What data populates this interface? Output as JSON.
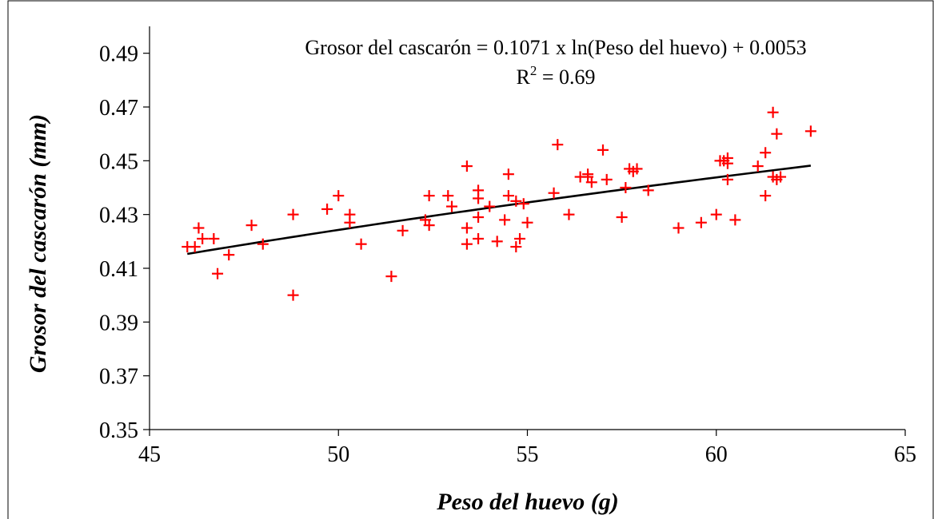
{
  "chart_data": {
    "type": "scatter",
    "xlabel": "Peso del huevo (g)",
    "ylabel": "Grosor del cascarón (mm)",
    "xlim": [
      45,
      65
    ],
    "ylim": [
      0.35,
      0.5
    ],
    "x_ticks": [
      45,
      50,
      55,
      60,
      65
    ],
    "y_ticks": [
      0.35,
      0.37,
      0.39,
      0.41,
      0.43,
      0.45,
      0.47,
      0.49
    ],
    "x_tick_labels": [
      "45",
      "50",
      "55",
      "60",
      "65"
    ],
    "y_tick_labels": [
      "0.35",
      "0.37",
      "0.39",
      "0.41",
      "0.43",
      "0.45",
      "0.47",
      "0.49"
    ],
    "grid": false,
    "legend": "none",
    "marker": "plus",
    "marker_color": "#ff0000",
    "trendline_color": "#000000",
    "annotation": {
      "equation": "Grosor del cascarón = 0.1071 x ln(Peso del huevo) + 0.0053",
      "r2_prefix": "R",
      "r2_sup": "2",
      "r2_suffix": " = 0.69"
    },
    "trendline": {
      "type": "logarithmic",
      "a": 0.1071,
      "b": 0.0053,
      "x_range": [
        46,
        62.5
      ]
    },
    "points": [
      [
        46.0,
        0.418
      ],
      [
        46.2,
        0.418
      ],
      [
        46.3,
        0.425
      ],
      [
        46.4,
        0.421
      ],
      [
        46.7,
        0.421
      ],
      [
        46.8,
        0.408
      ],
      [
        47.1,
        0.415
      ],
      [
        47.7,
        0.426
      ],
      [
        48.0,
        0.419
      ],
      [
        48.8,
        0.43
      ],
      [
        48.8,
        0.4
      ],
      [
        49.7,
        0.432
      ],
      [
        50.0,
        0.437
      ],
      [
        50.3,
        0.43
      ],
      [
        50.3,
        0.427
      ],
      [
        50.6,
        0.419
      ],
      [
        51.4,
        0.407
      ],
      [
        51.7,
        0.424
      ],
      [
        52.3,
        0.428
      ],
      [
        52.4,
        0.437
      ],
      [
        52.4,
        0.426
      ],
      [
        52.9,
        0.437
      ],
      [
        53.0,
        0.433
      ],
      [
        53.4,
        0.448
      ],
      [
        53.4,
        0.425
      ],
      [
        53.4,
        0.419
      ],
      [
        53.7,
        0.439
      ],
      [
        53.7,
        0.436
      ],
      [
        53.7,
        0.429
      ],
      [
        53.7,
        0.421
      ],
      [
        54.0,
        0.433
      ],
      [
        54.2,
        0.42
      ],
      [
        54.4,
        0.428
      ],
      [
        54.5,
        0.445
      ],
      [
        54.5,
        0.437
      ],
      [
        54.7,
        0.435
      ],
      [
        54.7,
        0.418
      ],
      [
        54.8,
        0.421
      ],
      [
        54.9,
        0.434
      ],
      [
        55.0,
        0.427
      ],
      [
        55.7,
        0.438
      ],
      [
        55.8,
        0.456
      ],
      [
        56.1,
        0.43
      ],
      [
        56.4,
        0.444
      ],
      [
        56.6,
        0.445
      ],
      [
        56.6,
        0.444
      ],
      [
        56.7,
        0.442
      ],
      [
        57.0,
        0.454
      ],
      [
        57.1,
        0.443
      ],
      [
        57.5,
        0.429
      ],
      [
        57.6,
        0.44
      ],
      [
        57.7,
        0.447
      ],
      [
        57.8,
        0.446
      ],
      [
        57.9,
        0.447
      ],
      [
        58.2,
        0.439
      ],
      [
        59.0,
        0.425
      ],
      [
        59.6,
        0.427
      ],
      [
        60.0,
        0.43
      ],
      [
        60.1,
        0.45
      ],
      [
        60.2,
        0.45
      ],
      [
        60.3,
        0.451
      ],
      [
        60.3,
        0.449
      ],
      [
        60.3,
        0.443
      ],
      [
        60.5,
        0.428
      ],
      [
        61.1,
        0.448
      ],
      [
        61.3,
        0.453
      ],
      [
        61.3,
        0.437
      ],
      [
        61.5,
        0.468
      ],
      [
        61.5,
        0.444
      ],
      [
        61.6,
        0.46
      ],
      [
        61.6,
        0.443
      ],
      [
        61.7,
        0.444
      ],
      [
        62.5,
        0.461
      ]
    ]
  }
}
